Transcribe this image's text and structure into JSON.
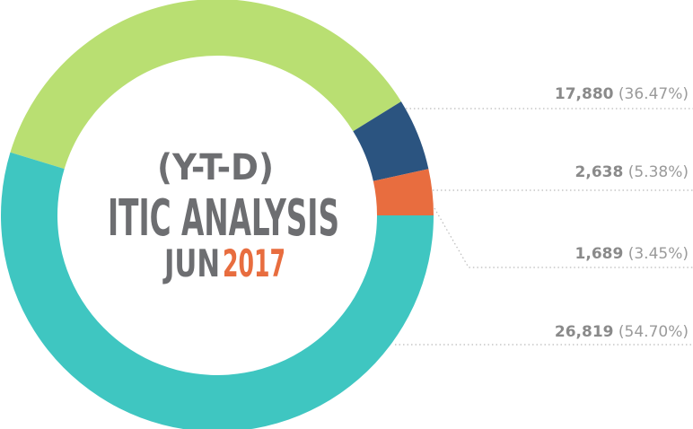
{
  "chart_data": {
    "type": "donut",
    "title_lines": [
      "(Y-T-D)",
      "ITIC ANALYSIS"
    ],
    "subtitle_prefix": "JUN",
    "subtitle_year": "2017",
    "values": [
      17880,
      2638,
      1689,
      26819
    ],
    "value_labels": [
      "17,880",
      "2,638",
      "1,689",
      "26,819"
    ],
    "percentages": [
      36.47,
      5.38,
      3.45,
      54.7
    ],
    "percentage_labels": [
      "(36.47%)",
      "(5.38%)",
      "(3.45%)",
      "(54.70%)"
    ],
    "colors": [
      "#b9df72",
      "#2b5480",
      "#e86d3f",
      "#3fc6c1"
    ]
  }
}
